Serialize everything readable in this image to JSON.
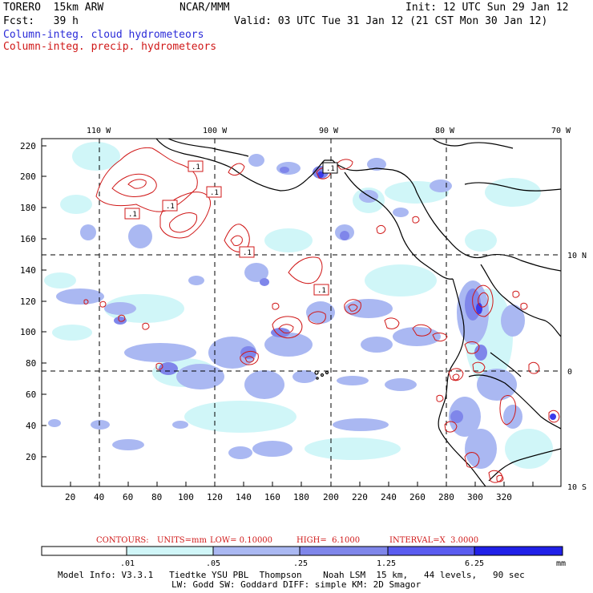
{
  "header": {
    "model": "TORERO  15km ARW",
    "org": "NCAR/MMM",
    "init": "Init: 12 UTC Sun 29 Jan 12",
    "fcst": "Fcst:   39 h",
    "valid": "Valid: 03 UTC Tue 31 Jan 12 (21 CST Mon 30 Jan 12)",
    "field1": "Column-integ. cloud hydrometeors",
    "field2": "Column-integ. precip. hydrometeors"
  },
  "colors": {
    "blue_text": "#2a2ad8",
    "red_text": "#d01818",
    "shade_levels": [
      "#ffffff",
      "#d0f6f8",
      "#aab8f2",
      "#7f86ea",
      "#5a5cf0",
      "#2020e8"
    ]
  },
  "map": {
    "lon_labels": [
      "110 W",
      "100 W",
      "90 W",
      "80 W",
      "70 W"
    ],
    "lat_labels": [
      "10 N",
      "0",
      "10 S"
    ],
    "y_ticks": [
      "220",
      "200",
      "180",
      "160",
      "140",
      "120",
      "100",
      "80",
      "60",
      "40",
      "20"
    ],
    "x_ticks": [
      "20",
      "40",
      "60",
      "80",
      "100",
      "120",
      "140",
      "160",
      "180",
      "200",
      "220",
      "240",
      "260",
      "280",
      "300",
      "320"
    ],
    "contour_labels": [
      ".1",
      ".1",
      ".1",
      ".1",
      ".1",
      ".1",
      ".1"
    ]
  },
  "contours": {
    "label": "CONTOURS:",
    "units": "UNITS=mm",
    "low": "LOW= 0.10000",
    "high": "HIGH=  6.1000",
    "interval": "INTERVAL=X  3.0000"
  },
  "legend": {
    "ticks": [
      ".01",
      ".05",
      ".25",
      "1.25",
      "6.25"
    ],
    "unit": "mm"
  },
  "footer": {
    "line1": "Model Info: V3.3.1   Tiedtke YSU PBL  Thompson    Noah LSM  15 km,   44 levels,   90 sec",
    "line2": "LW: Godd SW: Goddard DIFF: simple KM: 2D Smagor"
  }
}
